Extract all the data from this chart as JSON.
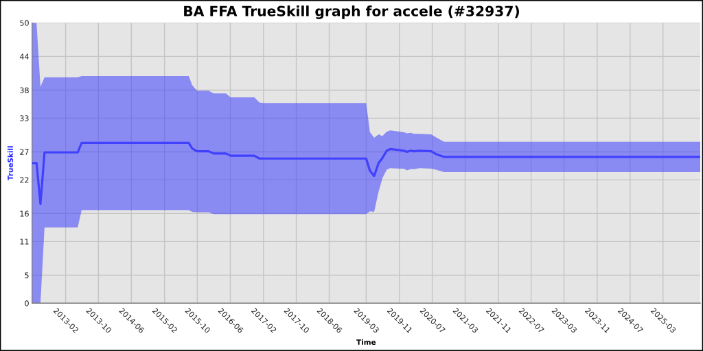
{
  "chart_data": {
    "type": "line",
    "title": "BA FFA TrueSkill graph for accele (#32937)",
    "xlabel": "Time",
    "ylabel": "TrueSkill",
    "x": [
      "2012-05-29",
      "2012-07-01",
      "2012-07-30",
      "2012-08-29",
      "2013-05-01",
      "2013-05-30",
      "2015-07-30",
      "2015-08-24",
      "2015-09-29",
      "2015-12-24",
      "2016-01-29",
      "2016-04-29",
      "2016-06-03",
      "2016-11-25",
      "2017-01-02",
      "2017-01-28",
      "2019-03-01",
      "2019-03-29",
      "2019-04-29",
      "2019-06-01",
      "2019-06-29",
      "2019-07-31",
      "2019-08-26",
      "2019-11-03",
      "2019-12-03",
      "2019-12-28",
      "2020-01-23",
      "2020-02-19",
      "2020-03-29",
      "2020-06-24",
      "2020-07-28",
      "2020-09-26",
      "2025-12-01"
    ],
    "series": [
      {
        "color": "#4040ff",
        "values": [
          25.0,
          25.0,
          17.7,
          26.9,
          26.9,
          28.6,
          28.6,
          27.6,
          27.1,
          27.1,
          26.7,
          26.7,
          26.3,
          26.3,
          25.8,
          25.8,
          25.8,
          23.6,
          22.7,
          25.0,
          25.9,
          27.2,
          27.5,
          27.3,
          27.2,
          27.0,
          27.2,
          27.1,
          27.2,
          27.1,
          26.6,
          26.1,
          26.1
        ],
        "lower": [
          0,
          0,
          0,
          13.5,
          13.5,
          16.6,
          16.6,
          16.3,
          16.2,
          16.2,
          15.9,
          15.9,
          15.9,
          15.9,
          15.9,
          15.9,
          15.9,
          16.4,
          16.3,
          19.9,
          22.3,
          23.8,
          24.1,
          24.0,
          24.0,
          23.7,
          23.9,
          23.9,
          24.1,
          24.0,
          23.8,
          23.4,
          23.4
        ],
        "upper": [
          50,
          50,
          38.6,
          40.3,
          40.3,
          40.5,
          40.5,
          38.9,
          37.9,
          37.9,
          37.4,
          37.4,
          36.7,
          36.7,
          35.8,
          35.7,
          35.7,
          30.5,
          29.5,
          30.1,
          29.8,
          30.6,
          30.8,
          30.6,
          30.5,
          30.3,
          30.4,
          30.2,
          30.2,
          30.1,
          29.6,
          28.8,
          28.8
        ]
      }
    ],
    "xlim": [
      "2012-05-29",
      "2025-12-01"
    ],
    "ylim": [
      0,
      50
    ],
    "xticks": [
      "2013-02",
      "2013-10",
      "2014-06",
      "2015-02",
      "2015-10",
      "2016-06",
      "2017-02",
      "2017-10",
      "2018-06",
      "2019-03",
      "2019-11",
      "2020-07",
      "2021-03",
      "2021-11",
      "2022-07",
      "2023-03",
      "2023-11",
      "2024-07",
      "2025-03"
    ],
    "yticks": [
      0,
      5,
      11,
      16,
      22,
      27,
      33,
      38,
      44,
      50
    ],
    "grid": true
  }
}
